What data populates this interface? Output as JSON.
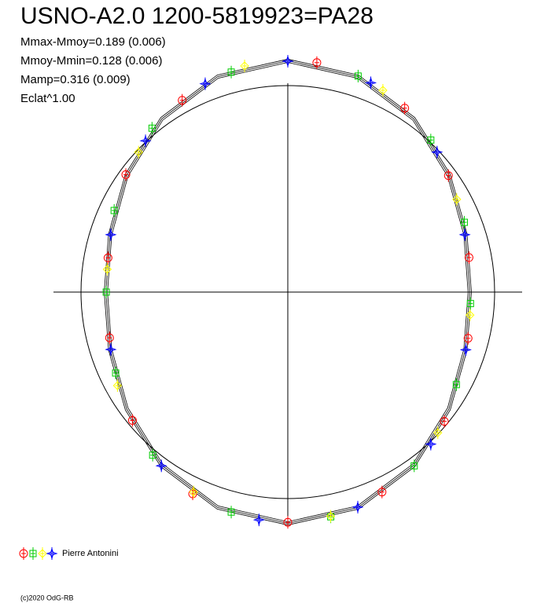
{
  "chart_data": {
    "type": "polar",
    "title": "USNO-A2.0 1200-5819923=PA28",
    "subtitle_lines": [
      "Mmax-Mmoy=0.189 (0.006)",
      "Mmoy-Mmin=0.128 (0.006)",
      "Mamp=0.316 (0.009)",
      "Eclat^1.00"
    ],
    "legend_label": "Pierre Antonini",
    "footer": "(c)2020 OdG-RB",
    "rlim": [
      0,
      1
    ],
    "series": [
      {
        "marker": "circle",
        "color": "#ff0000",
        "phase": [
          0.02,
          0.09,
          0.15,
          0.22,
          0.29,
          0.36,
          0.43,
          0.5,
          0.57,
          0.64,
          0.71,
          0.78,
          0.85,
          0.92
        ],
        "r": [
          1.12,
          1.055,
          0.96,
          0.892,
          0.9,
          0.982,
          1.07,
          1.115,
          1.08,
          0.975,
          0.89,
          0.885,
          0.968,
          1.06
        ]
      },
      {
        "marker": "square",
        "color": "#00cc00",
        "phase": [
          0.05,
          0.12,
          0.19,
          0.26,
          0.33,
          0.4,
          0.47,
          0.54,
          0.61,
          0.68,
          0.75,
          0.82,
          0.89,
          0.96
        ],
        "r": [
          1.1,
          1.01,
          0.918,
          0.885,
          0.93,
          1.04,
          1.108,
          1.1,
          1.025,
          0.92,
          0.878,
          0.928,
          1.03,
          1.1
        ]
      },
      {
        "marker": "diamond",
        "color": "#ffff00",
        "phase": [
          0.07,
          0.17,
          0.27,
          0.37,
          0.47,
          0.57,
          0.67,
          0.77,
          0.87,
          0.97
        ],
        "r": [
          1.08,
          0.932,
          0.888,
          0.995,
          1.105,
          1.07,
          0.94,
          0.88,
          0.99,
          1.115
        ]
      },
      {
        "marker": "star",
        "color": "#0000ff",
        "phase": [
          0.0,
          0.06,
          0.13,
          0.2,
          0.3,
          0.38,
          0.45,
          0.52,
          0.6,
          0.7,
          0.8,
          0.88,
          0.94
        ],
        "r": [
          1.118,
          1.09,
          0.99,
          0.9,
          0.905,
          1.01,
          1.095,
          1.112,
          1.04,
          0.9,
          0.9,
          1.005,
          1.085
        ]
      }
    ],
    "fit_phase": [
      0,
      0.05,
      0.1,
      0.15,
      0.2,
      0.25,
      0.3,
      0.35,
      0.4,
      0.45,
      0.5,
      0.55,
      0.6,
      0.65,
      0.7,
      0.75,
      0.8,
      0.85,
      0.9,
      0.95
    ],
    "fit_curves": [
      [
        1.112,
        1.089,
        1.029,
        0.955,
        0.895,
        0.872,
        0.895,
        0.955,
        1.029,
        1.089,
        1.112,
        1.089,
        1.029,
        0.955,
        0.895,
        0.872,
        0.895,
        0.955,
        1.029,
        1.089
      ],
      [
        1.12,
        1.097,
        1.037,
        0.963,
        0.903,
        0.88,
        0.903,
        0.963,
        1.037,
        1.097,
        1.12,
        1.097,
        1.037,
        0.963,
        0.903,
        0.88,
        0.903,
        0.963,
        1.037,
        1.097
      ],
      [
        1.128,
        1.105,
        1.045,
        0.971,
        0.911,
        0.888,
        0.911,
        0.971,
        1.045,
        1.105,
        1.128,
        1.105,
        1.045,
        0.971,
        0.911,
        0.888,
        0.911,
        0.971,
        1.045,
        1.105
      ]
    ]
  }
}
